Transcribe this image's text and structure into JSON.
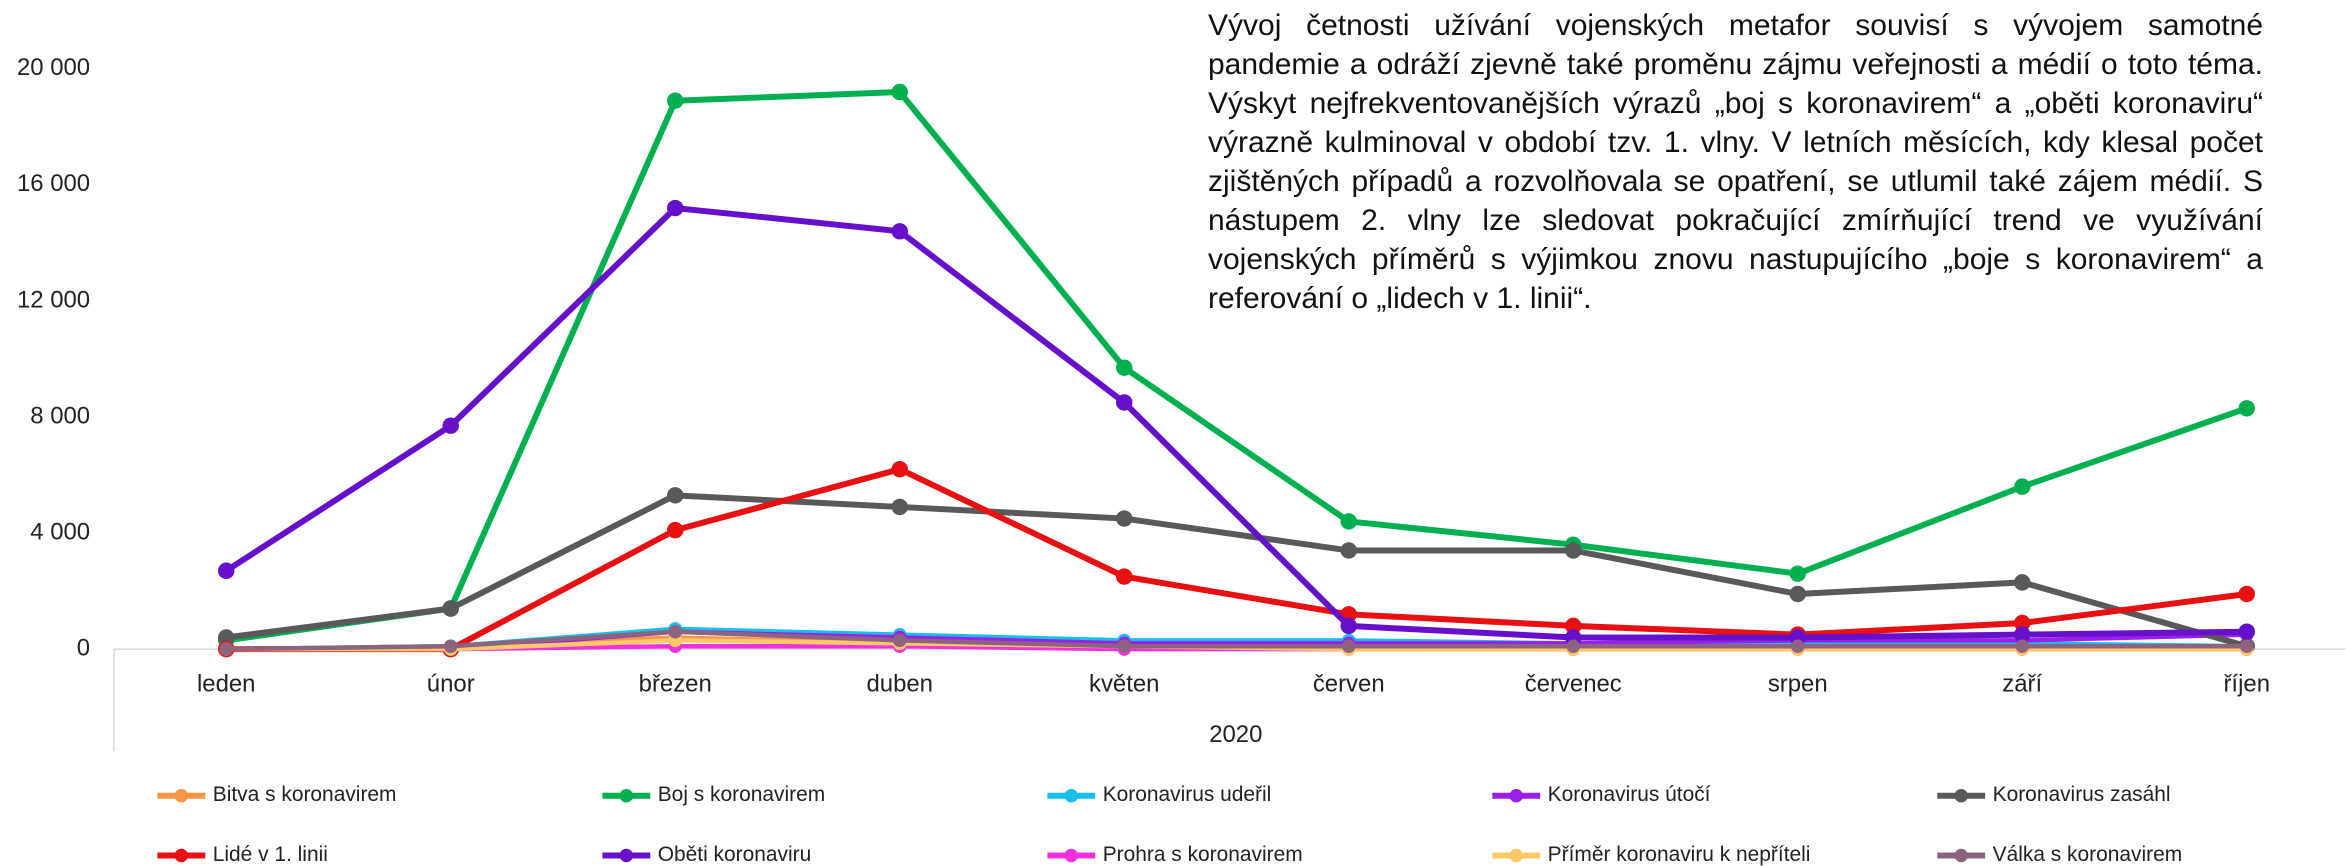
{
  "chart_data": {
    "type": "line",
    "annotation": "Vývoj četnosti užívání vojenských metafor souvisí s vývojem samotné pandemie a odráží zjevně také proměnu zájmu veřejnosti a médií o toto téma. Výskyt nejfrekventovanějších výrazů „boj s koronavirem“ a „oběti koronaviru“ výrazně kulminoval v období tzv. 1. vlny. V letních měsících, kdy klesal počet zjištěných případů a rozvolňovala se opatření, se utlumil také zájem médií. S nástupem 2. vlny lze sledovat pokračující zmírňující trend ve využívání vojenských příměrů s výjimkou znovu nastupujícího „boje s koronavirem“ a referování o „lidech v 1. linii“.",
    "x_label": "2020",
    "categories": [
      "leden",
      "únor",
      "březen",
      "duben",
      "květen",
      "červen",
      "červenec",
      "srpen",
      "září",
      "říjen"
    ],
    "ylim": [
      0,
      20000
    ],
    "yticks": [
      0,
      {
        "value": 4000,
        "label": "4 000"
      },
      {
        "value": 8000,
        "label": "8 000"
      },
      {
        "value": 12000,
        "label": "12 000"
      },
      {
        "value": 16000,
        "label": "16 000"
      },
      {
        "value": 20000,
        "label": "20 000"
      }
    ],
    "grid": false,
    "legend": "bottom",
    "series": [
      {
        "name": "Bitva s koronavirem",
        "color": "#f79646",
        "values": [
          0,
          100,
          400,
          200,
          100,
          100,
          100,
          100,
          100,
          0
        ]
      },
      {
        "name": "Boj s koronavirem",
        "color": "#00b050",
        "values": [
          300,
          1400,
          18900,
          19200,
          9700,
          4400,
          3600,
          2600,
          5600,
          8300
        ]
      },
      {
        "name": "Koronavirus udeřil",
        "color": "#17c0eb",
        "values": [
          0,
          100,
          700,
          500,
          300,
          300,
          200,
          200,
          200,
          100
        ]
      },
      {
        "name": "Koronavirus útočí",
        "color": "#9b1fe8",
        "values": [
          0,
          0,
          600,
          400,
          200,
          200,
          200,
          300,
          300,
          500
        ]
      },
      {
        "name": "Koronavirus zasáhl",
        "color": "#595959",
        "values": [
          400,
          1400,
          5300,
          4900,
          4500,
          3400,
          3400,
          1900,
          2300,
          100
        ]
      },
      {
        "name": "Lidé v 1. linii",
        "color": "#e81010",
        "values": [
          0,
          0,
          4100,
          6200,
          2500,
          1200,
          800,
          500,
          900,
          1900
        ]
      },
      {
        "name": "Oběti koronaviru",
        "color": "#6610cc",
        "values": [
          2700,
          7700,
          15200,
          14400,
          8500,
          800,
          400,
          400,
          500,
          600
        ]
      },
      {
        "name": "Prohra s koronavirem",
        "color": "#f030e0",
        "values": [
          0,
          0,
          100,
          100,
          0,
          0,
          0,
          0,
          0,
          0
        ]
      },
      {
        "name": "Příměr koronaviru k nepříteli",
        "color": "#ffc866",
        "values": [
          0,
          0,
          300,
          200,
          100,
          0,
          0,
          0,
          0,
          0
        ]
      },
      {
        "name": "Válka s koronavirem",
        "color": "#8c6480",
        "values": [
          0,
          100,
          600,
          300,
          100,
          100,
          100,
          100,
          100,
          100
        ]
      }
    ]
  }
}
